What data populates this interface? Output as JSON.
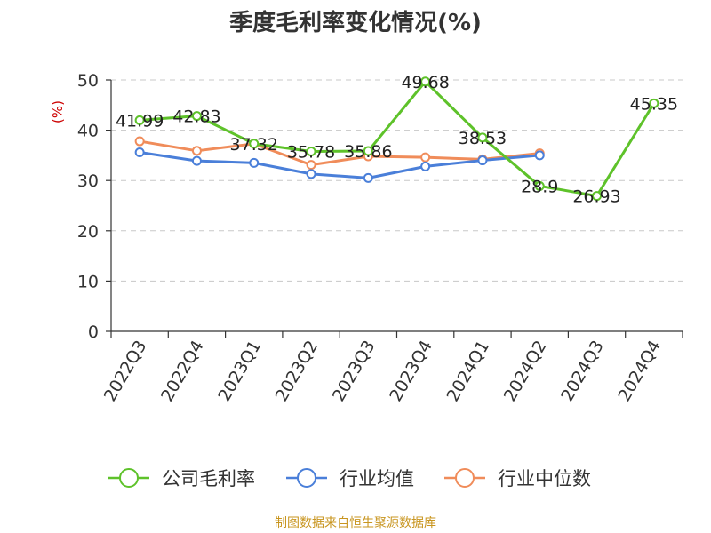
{
  "chart_data": {
    "type": "line",
    "title": "季度毛利率变化情况(%)",
    "ylabel": "(%)",
    "xlabel": "",
    "categories": [
      "2022Q3",
      "2022Q4",
      "2023Q1",
      "2023Q2",
      "2023Q3",
      "2023Q4",
      "2024Q1",
      "2024Q2",
      "2024Q3",
      "2024Q4"
    ],
    "ylim": [
      0,
      50
    ],
    "yticks": [
      0,
      10,
      20,
      30,
      40,
      50
    ],
    "grid": true,
    "legend_position": "bottom",
    "series": [
      {
        "name": "公司毛利率",
        "color": "#5ec22a",
        "values": [
          41.99,
          42.83,
          37.32,
          35.78,
          35.86,
          49.68,
          38.53,
          28.9,
          26.93,
          45.35
        ],
        "labels": [
          "41.99",
          "42.83",
          "37.32",
          "35.78",
          "35.86",
          "49.68",
          "38.53",
          "28.9",
          "26.93",
          "45.35"
        ]
      },
      {
        "name": "行业均值",
        "color": "#4a7fd9",
        "values": [
          35.6,
          33.9,
          33.5,
          31.3,
          30.5,
          32.8,
          34.0,
          35.0,
          null,
          null
        ]
      },
      {
        "name": "行业中位数",
        "color": "#f08c5a",
        "values": [
          37.8,
          35.9,
          37.3,
          33.1,
          34.8,
          34.6,
          34.2,
          35.4,
          null,
          null
        ]
      }
    ],
    "source": "制图数据来自恒生聚源数据库"
  }
}
